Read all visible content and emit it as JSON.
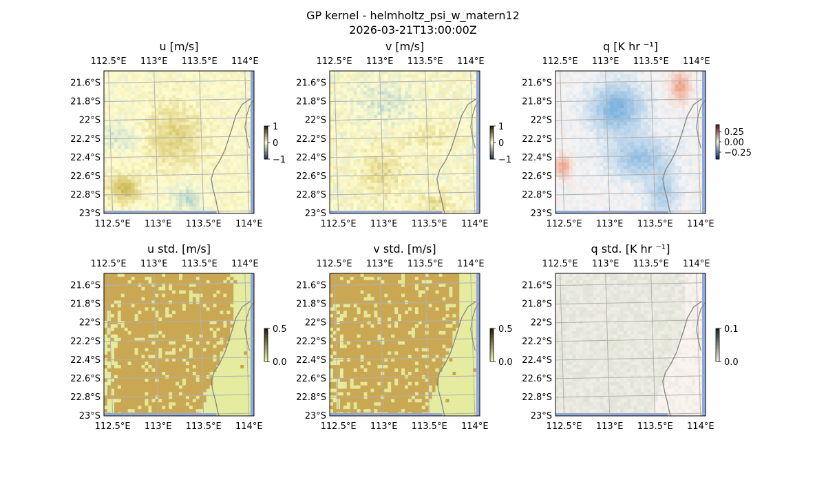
{
  "figure": {
    "title_line1": "GP kernel - helmholtz_psi_w_matern12",
    "title_line2": "2026-03-21T13:00:00Z"
  },
  "colors": {
    "land": "#fffccf",
    "ocean_edge": "#8fa8dc",
    "gridline": "#b0b0b0",
    "coast": "#888888",
    "pale_base": "#fffccf",
    "pos_tone": "#c8b44a",
    "neg_tone": "#9cc7cc",
    "std_high": "#c49a44",
    "std_low": "#e9f5a9",
    "q_pos": "#f08c6a",
    "q_neg": "#6aa8dc",
    "q_base": "#f4f4f4",
    "qstd_base": "#fbf3f0",
    "qstd_tone": "#c5d4bc"
  },
  "chart_data": [
    {
      "type": "heatmap",
      "title": "u [m/s]",
      "x_ticks": [
        "112.5°E",
        "113°E",
        "113.5°E",
        "114°E"
      ],
      "y_ticks": [
        "21.6°S",
        "21.8°S",
        "22°S",
        "22.2°S",
        "22.4°S",
        "22.6°S",
        "22.8°S",
        "23°S"
      ],
      "x_range": [
        112.45,
        114.1
      ],
      "y_range": [
        -23.0,
        -21.47
      ],
      "colorbar": {
        "ticks": [
          "1",
          "0",
          "−1"
        ],
        "range": [
          -1,
          1
        ]
      },
      "grid": true
    },
    {
      "type": "heatmap",
      "title": "v [m/s]",
      "x_ticks": [
        "112.5°E",
        "113°E",
        "113.5°E",
        "114°E"
      ],
      "y_ticks": [
        "21.6°S",
        "21.8°S",
        "22°S",
        "22.2°S",
        "22.4°S",
        "22.6°S",
        "22.8°S",
        "23°S"
      ],
      "x_range": [
        112.45,
        114.1
      ],
      "y_range": [
        -23.0,
        -21.47
      ],
      "colorbar": {
        "ticks": [
          "1",
          "0",
          "−1"
        ],
        "range": [
          -1,
          1
        ]
      },
      "grid": true
    },
    {
      "type": "heatmap",
      "title": "q [K hr ⁻¹]",
      "x_ticks": [
        "112.5°E",
        "113°E",
        "113.5°E",
        "114°E"
      ],
      "y_ticks": [
        "21.6°S",
        "21.8°S",
        "22°S",
        "22.2°S",
        "22.4°S",
        "22.6°S",
        "22.8°S",
        "23°S"
      ],
      "x_range": [
        112.45,
        114.1
      ],
      "y_range": [
        -23.0,
        -21.47
      ],
      "colorbar": {
        "ticks": [
          "0.25",
          "0.00",
          "−0.25"
        ],
        "range": [
          -0.4,
          0.4
        ]
      },
      "grid": true
    },
    {
      "type": "heatmap",
      "title": "u std. [m/s]",
      "x_ticks": [
        "112.5°E",
        "113°E",
        "113.5°E",
        "114°E"
      ],
      "y_ticks": [
        "21.6°S",
        "21.8°S",
        "22°S",
        "22.2°S",
        "22.4°S",
        "22.6°S",
        "22.8°S",
        "23°S"
      ],
      "x_range": [
        112.45,
        114.1
      ],
      "y_range": [
        -23.0,
        -21.47
      ],
      "colorbar": {
        "ticks": [
          "0.5",
          "0.0"
        ],
        "range": [
          0,
          0.5
        ]
      },
      "grid": true
    },
    {
      "type": "heatmap",
      "title": "v std. [m/s]",
      "x_ticks": [
        "112.5°E",
        "113°E",
        "113.5°E",
        "114°E"
      ],
      "y_ticks": [
        "21.6°S",
        "21.8°S",
        "22°S",
        "22.2°S",
        "22.4°S",
        "22.6°S",
        "22.8°S",
        "23°S"
      ],
      "x_range": [
        112.45,
        114.1
      ],
      "y_range": [
        -23.0,
        -21.47
      ],
      "colorbar": {
        "ticks": [
          "0.5",
          "0.0"
        ],
        "range": [
          0,
          0.5
        ]
      },
      "grid": true
    },
    {
      "type": "heatmap",
      "title": "q std. [K hr ⁻¹]",
      "x_ticks": [
        "112.5°E",
        "113°E",
        "113.5°E",
        "114°E"
      ],
      "y_ticks": [
        "21.6°S",
        "21.8°S",
        "22°S",
        "22.2°S",
        "22.4°S",
        "22.6°S",
        "22.8°S",
        "23°S"
      ],
      "x_range": [
        112.45,
        114.1
      ],
      "y_range": [
        -23.0,
        -21.47
      ],
      "colorbar": {
        "ticks": [
          "0.1",
          "0.0"
        ],
        "range": [
          0,
          0.1
        ]
      },
      "grid": true
    }
  ]
}
